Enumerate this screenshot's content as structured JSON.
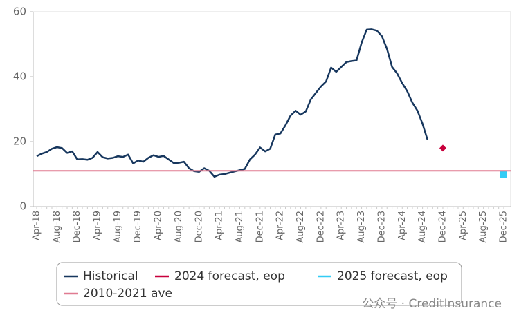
{
  "chart_data": {
    "type": "line",
    "categories": [
      "Apr-18",
      null,
      null,
      null,
      "Aug-18",
      null,
      null,
      null,
      "Dec-18",
      null,
      null,
      null,
      "Apr-19",
      null,
      null,
      null,
      "Aug-19",
      null,
      null,
      null,
      "Dec-19",
      null,
      null,
      null,
      "Apr-20",
      null,
      null,
      null,
      "Aug-20",
      null,
      null,
      null,
      "Dec-20",
      null,
      null,
      null,
      "Apr-21",
      null,
      null,
      null,
      "Aug-21",
      null,
      null,
      null,
      "Dec-21",
      null,
      null,
      null,
      "Apr-22",
      null,
      null,
      null,
      "Aug-22",
      null,
      null,
      null,
      "Dec-22",
      null,
      null,
      null,
      "Apr-23",
      null,
      null,
      null,
      "Aug-23",
      null,
      null,
      null,
      "Dec-23",
      null,
      null,
      null,
      "Apr-24",
      null,
      null,
      null,
      "Aug-24",
      null,
      null,
      null,
      "Dec-24",
      null,
      null,
      null,
      "Apr-25",
      null,
      null,
      null,
      "Aug-25",
      null,
      null,
      null,
      "Dec-25"
    ],
    "series": [
      {
        "name": "Historical",
        "color": "#17375e",
        "values": [
          15.5,
          16.3,
          16.8,
          17.8,
          18.3,
          18.0,
          16.5,
          17.0,
          14.5,
          14.6,
          14.4,
          15.0,
          16.8,
          15.2,
          14.8,
          15.0,
          15.5,
          15.3,
          16.0,
          13.3,
          14.2,
          13.8,
          15.0,
          15.8,
          15.3,
          15.6,
          14.5,
          13.4,
          13.5,
          13.8,
          11.8,
          10.9,
          10.7,
          11.8,
          11.0,
          9.2,
          9.8,
          10.0,
          10.4,
          10.8,
          11.2,
          11.6,
          14.5,
          16.0,
          18.2,
          17.0,
          17.8,
          22.2,
          22.5,
          25.0,
          28.0,
          29.5,
          28.3,
          29.3,
          33.0,
          35.0,
          37.0,
          38.5,
          42.8,
          41.5,
          43.0,
          44.5,
          44.8,
          45.0,
          50.5,
          54.5,
          54.6,
          54.2,
          52.5,
          48.5,
          43.0,
          41.0,
          38.0,
          35.5,
          32.0,
          29.5,
          25.5,
          20.5,
          null,
          null,
          null,
          null,
          null,
          null,
          null,
          null,
          null,
          null,
          null,
          null,
          null,
          null,
          null
        ]
      },
      {
        "name": "2024 forecast, eop",
        "color": "#c8003c",
        "marker": "diamond",
        "x": [
          "Dec-24"
        ],
        "values": [
          18
        ]
      },
      {
        "name": "2025 forecast, eop",
        "color": "#33ccf5",
        "marker": "square",
        "x": [
          "Dec-25"
        ],
        "values": [
          10
        ]
      },
      {
        "name": "2010-2021 ave",
        "color": "#e07b91",
        "marker": "hline",
        "value": 11
      }
    ],
    "ylim": [
      0,
      60
    ],
    "yticks": [
      0,
      20,
      40,
      60
    ],
    "legend": "bottom",
    "watermark": "公众号 · CreditInsurance"
  }
}
